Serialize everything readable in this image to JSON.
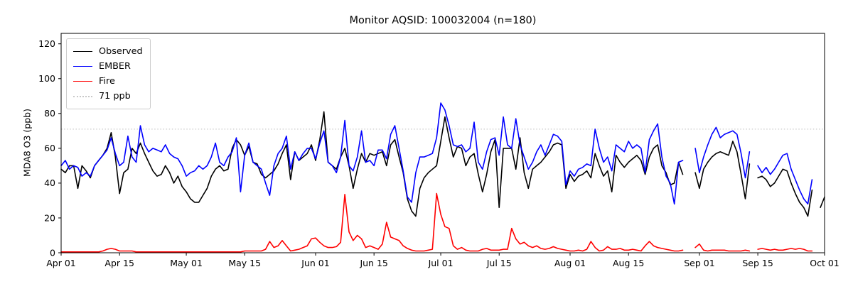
{
  "figure": {
    "background": "#ffffff"
  },
  "legend": {
    "items": [
      {
        "label": "Observed",
        "color": "#000000",
        "dash": "solid"
      },
      {
        "label": "EMBER",
        "color": "#0000ff",
        "dash": "solid"
      },
      {
        "label": "Fire",
        "color": "#ff0000",
        "dash": "solid"
      },
      {
        "label": "71 ppb",
        "color": "#c8c8c8",
        "dash": "dotted"
      }
    ]
  },
  "chart_data": {
    "type": "line",
    "title": "Monitor AQSID: 100032004 (n=180)",
    "xlabel": "",
    "ylabel": "MDA8 O3 (ppb)",
    "ylim": [
      0,
      126
    ],
    "yticks": [
      0,
      20,
      40,
      60,
      80,
      100,
      120
    ],
    "x_tick_labels": [
      "Apr 01",
      "Apr 15",
      "May 01",
      "May 15",
      "Jun 01",
      "Jun 15",
      "Jul 01",
      "Jul 15",
      "Aug 01",
      "Aug 15",
      "Sep 01",
      "Sep 15",
      "Oct 01"
    ],
    "x_tick_days": [
      0,
      14,
      30,
      44,
      61,
      75,
      91,
      105,
      122,
      136,
      153,
      167,
      183
    ],
    "n_days": 184,
    "x_start_label": "Apr 01",
    "x_end_label": "Oct 01",
    "grid": false,
    "legend_position": "upper-left",
    "reference_line": {
      "value": 71,
      "label": "71 ppb",
      "color": "#c8c8c8",
      "style": "dotted"
    },
    "series": [
      {
        "name": "Observed",
        "color": "#000000",
        "values": [
          48,
          46,
          50,
          50,
          37,
          50,
          47,
          43,
          50,
          53,
          56,
          60,
          69,
          55,
          34,
          46,
          48,
          60,
          57,
          63,
          57,
          52,
          47,
          44,
          45,
          50,
          46,
          40,
          44,
          38,
          35,
          31,
          29,
          29,
          33,
          37,
          44,
          48,
          50,
          47,
          48,
          60,
          65,
          62,
          56,
          61,
          52,
          51,
          45,
          43,
          45,
          47,
          51,
          57,
          62,
          42,
          58,
          53,
          55,
          57,
          62,
          53,
          65,
          81,
          52,
          50,
          48,
          55,
          60,
          50,
          37,
          48,
          57,
          52,
          57,
          56,
          57,
          58,
          50,
          62,
          65,
          55,
          46,
          31,
          24,
          21,
          37,
          43,
          46,
          48,
          50,
          64,
          78,
          66,
          55,
          61,
          60,
          50,
          55,
          57,
          45,
          35,
          45,
          58,
          65,
          26,
          60,
          60,
          60,
          48,
          66,
          46,
          37,
          48,
          50,
          52,
          55,
          58,
          62,
          63,
          62,
          37,
          45,
          41,
          44,
          45,
          47,
          43,
          57,
          50,
          44,
          47,
          35,
          56,
          52,
          49,
          52,
          54,
          56,
          53,
          45,
          55,
          60,
          62,
          50,
          46,
          39,
          40,
          52,
          45,
          null,
          null,
          46,
          37,
          48,
          52,
          55,
          57,
          58,
          57,
          56,
          64,
          58,
          45,
          31,
          51,
          null,
          43,
          44,
          42,
          38,
          40,
          44,
          48,
          47,
          40,
          34,
          29,
          26,
          21,
          36,
          null,
          26,
          32
        ]
      },
      {
        "name": "EMBER",
        "color": "#0000ff",
        "values": [
          50,
          53,
          48,
          50,
          49,
          44,
          46,
          44,
          50,
          53,
          56,
          59,
          66,
          57,
          50,
          52,
          67,
          55,
          52,
          73,
          62,
          58,
          60,
          59,
          58,
          62,
          57,
          55,
          54,
          50,
          44,
          46,
          47,
          50,
          48,
          50,
          55,
          63,
          52,
          50,
          55,
          58,
          66,
          35,
          56,
          63,
          52,
          50,
          48,
          40,
          33,
          50,
          57,
          60,
          67,
          48,
          58,
          53,
          57,
          60,
          60,
          54,
          63,
          70,
          52,
          50,
          46,
          55,
          76,
          50,
          47,
          55,
          70,
          52,
          53,
          50,
          59,
          59,
          54,
          68,
          73,
          60,
          47,
          32,
          29,
          46,
          55,
          55,
          56,
          57,
          66,
          86,
          82,
          73,
          62,
          61,
          62,
          58,
          60,
          75,
          52,
          48,
          58,
          65,
          66,
          56,
          78,
          62,
          60,
          77,
          62,
          55,
          48,
          52,
          58,
          62,
          56,
          62,
          68,
          67,
          64,
          39,
          47,
          44,
          48,
          49,
          51,
          50,
          71,
          60,
          52,
          55,
          47,
          62,
          60,
          58,
          64,
          60,
          62,
          60,
          46,
          65,
          70,
          74,
          55,
          44,
          40,
          28,
          52,
          53,
          null,
          null,
          60,
          46,
          55,
          62,
          68,
          72,
          66,
          68,
          69,
          70,
          68,
          57,
          43,
          58,
          null,
          50,
          46,
          49,
          45,
          48,
          52,
          56,
          57,
          48,
          42,
          36,
          31,
          28,
          42,
          null,
          null,
          null
        ]
      },
      {
        "name": "Fire",
        "color": "#ff0000",
        "values": [
          0.5,
          0.5,
          0.5,
          0.5,
          0.5,
          0.5,
          0.5,
          0.5,
          0.5,
          0.5,
          1,
          2,
          2.5,
          2,
          1,
          1,
          1,
          1,
          0.5,
          0.5,
          0.5,
          0.5,
          0.5,
          0.5,
          0.5,
          0.5,
          0.5,
          0.5,
          0.5,
          0.5,
          0.5,
          0.5,
          0.5,
          0.5,
          0.5,
          0.5,
          0.5,
          0.5,
          0.5,
          0.5,
          0.5,
          0.5,
          0.5,
          0.5,
          1,
          1,
          1,
          1,
          1,
          2,
          6.5,
          3,
          4,
          7,
          4,
          1,
          1.5,
          2,
          3,
          4,
          8,
          8.5,
          6,
          4,
          3,
          3,
          3.5,
          6,
          33.5,
          12,
          7,
          10,
          8,
          3,
          4,
          3,
          2,
          5,
          17.5,
          9,
          8,
          7,
          4,
          2.5,
          1.5,
          1,
          1,
          1,
          1.5,
          2,
          34,
          22,
          15,
          14,
          4,
          2,
          3,
          1.5,
          1,
          1,
          1,
          2,
          2.5,
          1.5,
          1.5,
          1.5,
          2,
          2,
          14,
          8,
          5,
          6,
          4,
          3,
          4,
          2.5,
          2,
          2.5,
          3.5,
          2.5,
          2,
          1.5,
          1,
          1,
          1.5,
          1,
          2,
          6.5,
          3,
          1,
          1.5,
          3.5,
          2,
          2,
          2.5,
          1.5,
          1.5,
          2,
          1.5,
          1,
          4,
          6.5,
          4,
          3,
          2.5,
          2,
          1.5,
          1,
          1,
          1.5,
          null,
          null,
          3,
          5,
          1.5,
          1,
          1.5,
          1.5,
          1.5,
          1.5,
          1,
          1,
          1,
          1,
          1.5,
          1,
          null,
          2,
          2.5,
          2,
          1.5,
          2,
          1.5,
          1.5,
          2,
          2.5,
          2,
          2.5,
          2,
          1,
          1,
          null,
          null,
          null
        ]
      }
    ]
  }
}
